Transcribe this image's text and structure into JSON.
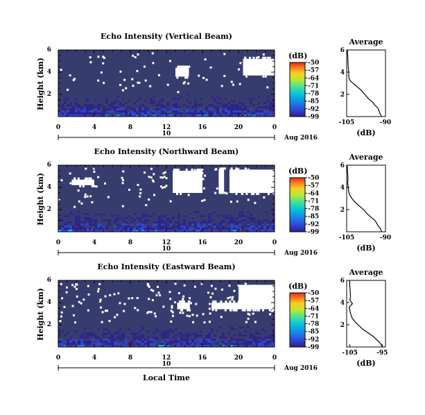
{
  "xlabel": "Local Time",
  "date_label": "Aug 2016",
  "day_label": "10",
  "colors": {
    "background": "#373c6e",
    "colormap": [
      "#2d1f8c",
      "#2f45d8",
      "#1a82e8",
      "#00c0e0",
      "#3de0a0",
      "#b8e830",
      "#f8d020",
      "#f88020",
      "#e82818"
    ]
  },
  "chart_data": [
    {
      "type": "heatmap",
      "title": "Echo Intensity (Vertical Beam)",
      "xlabel": "",
      "ylabel": "Height (km)",
      "x_ticks": [
        "0",
        "4",
        "8",
        "12",
        "16",
        "20",
        "0"
      ],
      "y_ticks": [
        "2",
        "4",
        "6"
      ],
      "xlim": [
        0,
        24
      ],
      "ylim": [
        0,
        6
      ],
      "colorbar": {
        "label": "(dB)",
        "ticks": [
          "-50",
          "-57",
          "-64",
          "-71",
          "-78",
          "-85",
          "-92",
          "-99"
        ],
        "range": [
          -99,
          -50
        ]
      },
      "blank_regions": [
        {
          "t": [
            13.0,
            14.5
          ],
          "h": [
            3.6,
            4.4
          ]
        },
        {
          "t": [
            20.5,
            24.0
          ],
          "h": [
            3.7,
            5.2
          ]
        }
      ],
      "profile": {
        "title": "Average",
        "xlabel": "(dB)",
        "x_ticks": [
          "-105",
          "-90"
        ],
        "y_ticks": [
          "2",
          "4",
          "6"
        ],
        "xlim": [
          -105,
          -90
        ],
        "ylim": [
          0,
          6
        ],
        "height": [
          0,
          0.2,
          0.5,
          0.8,
          1.0,
          1.3,
          1.6,
          2.0,
          2.4,
          2.7,
          3.0,
          3.2,
          3.4,
          3.6,
          4.0,
          4.5,
          5.0,
          5.5,
          6.0
        ],
        "value": [
          -91.5,
          -92,
          -92.5,
          -93,
          -94,
          -95,
          -96.5,
          -98,
          -99.5,
          -101,
          -102.5,
          -103.5,
          -104,
          -104.2,
          -104.2,
          -104.4,
          -104.5,
          -104.6,
          -104.7
        ]
      }
    },
    {
      "type": "heatmap",
      "title": "Echo Intensity (Northward Beam)",
      "xlabel": "",
      "ylabel": "Height (km)",
      "x_ticks": [
        "0",
        "4",
        "8",
        "12",
        "16",
        "20",
        "0"
      ],
      "y_ticks": [
        "2",
        "4",
        "6"
      ],
      "xlim": [
        0,
        24
      ],
      "ylim": [
        0,
        6
      ],
      "colorbar": {
        "label": "(dB)",
        "ticks": [
          "-50",
          "-57",
          "-64",
          "-71",
          "-78",
          "-85",
          "-92",
          "-99"
        ],
        "range": [
          -99,
          -50
        ]
      },
      "blank_regions": [
        {
          "t": [
            12.7,
            16.0
          ],
          "h": [
            3.5,
            5.5
          ]
        },
        {
          "t": [
            17.8,
            18.4
          ],
          "h": [
            3.6,
            5.6
          ]
        },
        {
          "t": [
            19.0,
            24.0
          ],
          "h": [
            3.5,
            5.6
          ]
        },
        {
          "t": [
            1.5,
            4.0
          ],
          "h": [
            4.2,
            4.7
          ]
        }
      ],
      "profile": {
        "title": "Average",
        "xlabel": "(dB)",
        "x_ticks": [
          "-105",
          "-90"
        ],
        "y_ticks": [
          "2",
          "4",
          "6"
        ],
        "xlim": [
          -105,
          -90
        ],
        "ylim": [
          0,
          6
        ],
        "height": [
          0,
          0.3,
          0.6,
          1.0,
          1.3,
          1.6,
          2.0,
          2.3,
          2.6,
          3.0,
          3.3,
          3.6,
          4.0,
          4.4,
          4.8,
          5.2,
          5.6,
          6.0
        ],
        "value": [
          -91.5,
          -92,
          -93,
          -94,
          -95.5,
          -97,
          -98.5,
          -100,
          -101.5,
          -103,
          -103.8,
          -104.2,
          -104.4,
          -104.6,
          -104.5,
          -104.6,
          -104.7,
          -104.8
        ]
      }
    },
    {
      "type": "heatmap",
      "title": "Echo Intensity (Eastward Beam)",
      "xlabel": "",
      "ylabel": "Height (km)",
      "x_ticks": [
        "0",
        "4",
        "8",
        "12",
        "16",
        "20",
        "0"
      ],
      "y_ticks": [
        "2",
        "4",
        "6"
      ],
      "xlim": [
        0,
        24
      ],
      "ylim": [
        0,
        6
      ],
      "colorbar": {
        "label": "(dB)",
        "ticks": [
          "-50",
          "-57",
          "-64",
          "-71",
          "-78",
          "-85",
          "-92",
          "-99"
        ],
        "range": [
          -99,
          -50
        ]
      },
      "blank_regions": [
        {
          "t": [
            13.2,
            14.6
          ],
          "h": [
            3.4,
            4.0
          ]
        },
        {
          "t": [
            20.0,
            24.0
          ],
          "h": [
            3.4,
            5.6
          ]
        },
        {
          "t": [
            17.0,
            20.0
          ],
          "h": [
            3.4,
            4.0
          ]
        }
      ],
      "profile": {
        "title": "Average",
        "xlabel": "(dB)",
        "x_ticks": [
          "-105",
          "-95"
        ],
        "y_ticks": [
          "2",
          "4",
          "6"
        ],
        "xlim": [
          -106,
          -94
        ],
        "ylim": [
          0,
          6
        ],
        "height": [
          0,
          0.3,
          0.6,
          1.0,
          1.3,
          1.6,
          2.0,
          2.3,
          2.6,
          3.0,
          3.3,
          3.6,
          3.9,
          4.2,
          4.6,
          5.0,
          5.4,
          6.0
        ],
        "value": [
          -95,
          -95.5,
          -96.5,
          -98,
          -99.5,
          -101,
          -102.5,
          -103.5,
          -104.3,
          -104.8,
          -105,
          -105.2,
          -104.2,
          -105,
          -104.8,
          -104.9,
          -105,
          -105.1
        ]
      }
    }
  ]
}
